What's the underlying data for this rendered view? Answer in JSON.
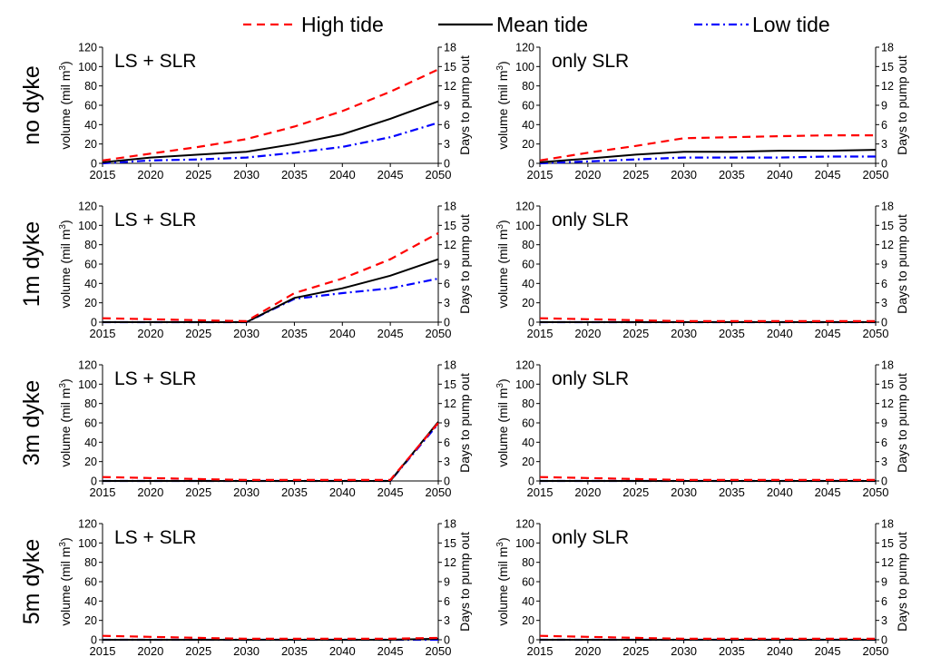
{
  "legend": {
    "items": [
      {
        "label": "High tide",
        "color": "#ff0000",
        "dash": "dashed"
      },
      {
        "label": "Mean tide",
        "color": "#000000",
        "dash": "solid"
      },
      {
        "label": "Low tide",
        "color": "#0000ff",
        "dash": "dashdot"
      }
    ]
  },
  "rows": [
    "no dyke",
    "1m dyke",
    "3m dyke",
    "5m dyke"
  ],
  "axes": {
    "left_label": "volume (mil m",
    "left_label_sup": "3",
    "left_label_close": ")",
    "right_label": "Days to pump out",
    "left_ticks": [
      "0",
      "20",
      "40",
      "60",
      "80",
      "100",
      "120"
    ],
    "right_ticks": [
      "0",
      "3",
      "6",
      "9",
      "12",
      "15",
      "18"
    ],
    "x_ticks": [
      "2015",
      "2020",
      "2025",
      "2030",
      "2035",
      "2040",
      "2045",
      "2050"
    ]
  },
  "chart_data": [
    {
      "type": "line",
      "row": "no dyke",
      "panel_title": "LS + SLR",
      "x": [
        2015,
        2020,
        2025,
        2030,
        2035,
        2040,
        2045,
        2050
      ],
      "ylim": [
        0,
        120
      ],
      "xlim": [
        2015,
        2050
      ],
      "y2lim": [
        0,
        18
      ],
      "series": [
        {
          "name": "High tide",
          "values": [
            3,
            10,
            17,
            25,
            38,
            54,
            74,
            97
          ]
        },
        {
          "name": "Mean tide",
          "values": [
            1,
            6,
            9,
            12,
            20,
            30,
            46,
            64
          ]
        },
        {
          "name": "Low tide",
          "values": [
            0,
            3,
            4,
            6,
            11,
            17,
            27,
            42
          ]
        }
      ]
    },
    {
      "type": "line",
      "row": "no dyke",
      "panel_title": "only SLR",
      "x": [
        2015,
        2020,
        2025,
        2030,
        2035,
        2040,
        2045,
        2050
      ],
      "ylim": [
        0,
        120
      ],
      "xlim": [
        2015,
        2050
      ],
      "y2lim": [
        0,
        18
      ],
      "series": [
        {
          "name": "High tide",
          "values": [
            3,
            11,
            18,
            26,
            27,
            28,
            29,
            29
          ]
        },
        {
          "name": "Mean tide",
          "values": [
            1,
            5,
            9,
            12,
            12,
            13,
            13,
            14
          ]
        },
        {
          "name": "Low tide",
          "values": [
            0,
            2,
            4,
            6,
            6,
            6,
            7,
            7
          ]
        }
      ]
    },
    {
      "type": "line",
      "row": "1m dyke",
      "panel_title": "LS + SLR",
      "x": [
        2015,
        2020,
        2025,
        2030,
        2035,
        2040,
        2045,
        2050
      ],
      "ylim": [
        0,
        120
      ],
      "xlim": [
        2015,
        2050
      ],
      "y2lim": [
        0,
        18
      ],
      "series": [
        {
          "name": "High tide",
          "values": [
            4,
            3,
            2,
            1,
            30,
            45,
            65,
            92
          ]
        },
        {
          "name": "Mean tide",
          "values": [
            0,
            0,
            0,
            0,
            25,
            35,
            48,
            65
          ]
        },
        {
          "name": "Low tide",
          "values": [
            0,
            0,
            0,
            0,
            24,
            30,
            35,
            45
          ]
        }
      ]
    },
    {
      "type": "line",
      "row": "1m dyke",
      "panel_title": "only SLR",
      "x": [
        2015,
        2020,
        2025,
        2030,
        2035,
        2040,
        2045,
        2050
      ],
      "ylim": [
        0,
        120
      ],
      "xlim": [
        2015,
        2050
      ],
      "y2lim": [
        0,
        18
      ],
      "series": [
        {
          "name": "High tide",
          "values": [
            4,
            3,
            2,
            1,
            1,
            1,
            1,
            1
          ]
        },
        {
          "name": "Mean tide",
          "values": [
            0,
            0,
            0,
            0,
            0,
            0,
            0,
            0
          ]
        },
        {
          "name": "Low tide",
          "values": [
            0,
            0,
            0,
            0,
            0,
            0,
            0,
            0
          ]
        }
      ]
    },
    {
      "type": "line",
      "row": "3m dyke",
      "panel_title": "LS + SLR",
      "x": [
        2015,
        2020,
        2025,
        2030,
        2035,
        2040,
        2045,
        2050
      ],
      "ylim": [
        0,
        120
      ],
      "xlim": [
        2015,
        2050
      ],
      "y2lim": [
        0,
        18
      ],
      "series": [
        {
          "name": "High tide",
          "values": [
            4,
            3,
            2,
            1,
            1,
            1,
            1,
            60
          ]
        },
        {
          "name": "Mean tide",
          "values": [
            0,
            0,
            0,
            0,
            0,
            0,
            0,
            61
          ]
        },
        {
          "name": "Low tide",
          "values": [
            0,
            0,
            0,
            0,
            0,
            0,
            0,
            59
          ]
        }
      ]
    },
    {
      "type": "line",
      "row": "3m dyke",
      "panel_title": "only SLR",
      "x": [
        2015,
        2020,
        2025,
        2030,
        2035,
        2040,
        2045,
        2050
      ],
      "ylim": [
        0,
        120
      ],
      "xlim": [
        2015,
        2050
      ],
      "y2lim": [
        0,
        18
      ],
      "series": [
        {
          "name": "High tide",
          "values": [
            4,
            3,
            2,
            1,
            1,
            1,
            1,
            1
          ]
        },
        {
          "name": "Mean tide",
          "values": [
            0,
            0,
            0,
            0,
            0,
            0,
            0,
            0
          ]
        },
        {
          "name": "Low tide",
          "values": [
            0,
            0,
            0,
            0,
            0,
            0,
            0,
            0
          ]
        }
      ]
    },
    {
      "type": "line",
      "row": "5m dyke",
      "panel_title": "LS + SLR",
      "x": [
        2015,
        2020,
        2025,
        2030,
        2035,
        2040,
        2045,
        2050
      ],
      "ylim": [
        0,
        120
      ],
      "xlim": [
        2015,
        2050
      ],
      "y2lim": [
        0,
        18
      ],
      "series": [
        {
          "name": "High tide",
          "values": [
            4,
            3,
            2,
            1,
            1,
            1,
            1,
            2
          ]
        },
        {
          "name": "Mean tide",
          "values": [
            0,
            0,
            0,
            0,
            0,
            0,
            0,
            1
          ]
        },
        {
          "name": "Low tide",
          "values": [
            0,
            0,
            0,
            0,
            0,
            0,
            0,
            0
          ]
        }
      ]
    },
    {
      "type": "line",
      "row": "5m dyke",
      "panel_title": "only SLR",
      "x": [
        2015,
        2020,
        2025,
        2030,
        2035,
        2040,
        2045,
        2050
      ],
      "ylim": [
        0,
        120
      ],
      "xlim": [
        2015,
        2050
      ],
      "y2lim": [
        0,
        18
      ],
      "series": [
        {
          "name": "High tide",
          "values": [
            4,
            3,
            2,
            1,
            1,
            1,
            1,
            1
          ]
        },
        {
          "name": "Mean tide",
          "values": [
            0,
            0,
            0,
            0,
            0,
            0,
            0,
            0
          ]
        },
        {
          "name": "Low tide",
          "values": [
            0,
            0,
            0,
            0,
            0,
            0,
            0,
            0
          ]
        }
      ]
    }
  ]
}
